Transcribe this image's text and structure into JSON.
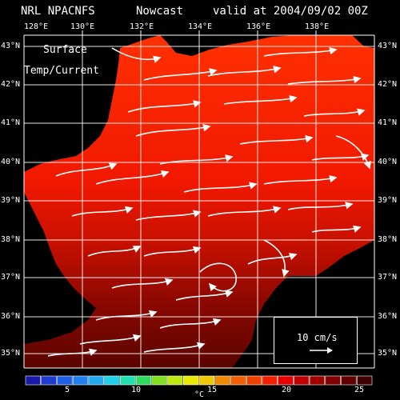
{
  "header": {
    "model": "NRL NPACNFS",
    "product": "Nowcast",
    "valid": "valid at 2004/09/02 00Z"
  },
  "overlay": {
    "line1": "Surface",
    "line2": "Temp/Current"
  },
  "lon_ticks": [
    "128°E",
    "130°E",
    "132°E",
    "134°E",
    "136°E",
    "138°E"
  ],
  "lat_ticks_left": [
    "43°N",
    "42°N",
    "41°N",
    "40°N",
    "39°N",
    "38°N",
    "37°N",
    "36°N",
    "35°N"
  ],
  "lat_ticks_right": [
    "43°N",
    "42°N",
    "41°N",
    "40°N",
    "39°N",
    "38°N",
    "37°N",
    "36°N",
    "35°N"
  ],
  "legend": {
    "label": "10 cm/s"
  },
  "colorbar": {
    "unit": "°C",
    "labels": [
      "5",
      "10",
      "15",
      "20",
      "25"
    ],
    "range": [
      2,
      26
    ],
    "colors": [
      "#1a1aa8",
      "#1f3cd0",
      "#2060e8",
      "#2080f0",
      "#20a8f0",
      "#20d0e8",
      "#20e0b0",
      "#30d860",
      "#80e020",
      "#c0e810",
      "#e8e800",
      "#f0c800",
      "#f08800",
      "#f06000",
      "#f04000",
      "#f02000",
      "#e80000",
      "#c00000",
      "#a00000",
      "#800000",
      "#600000",
      "#400000"
    ]
  },
  "colors": {
    "land": "#000000",
    "sea_north": "#ff2a00",
    "sea_mid": "#d81800",
    "sea_south": "#8a0a00",
    "current_arrows": "#ffffff",
    "grid": "#ffffff"
  }
}
